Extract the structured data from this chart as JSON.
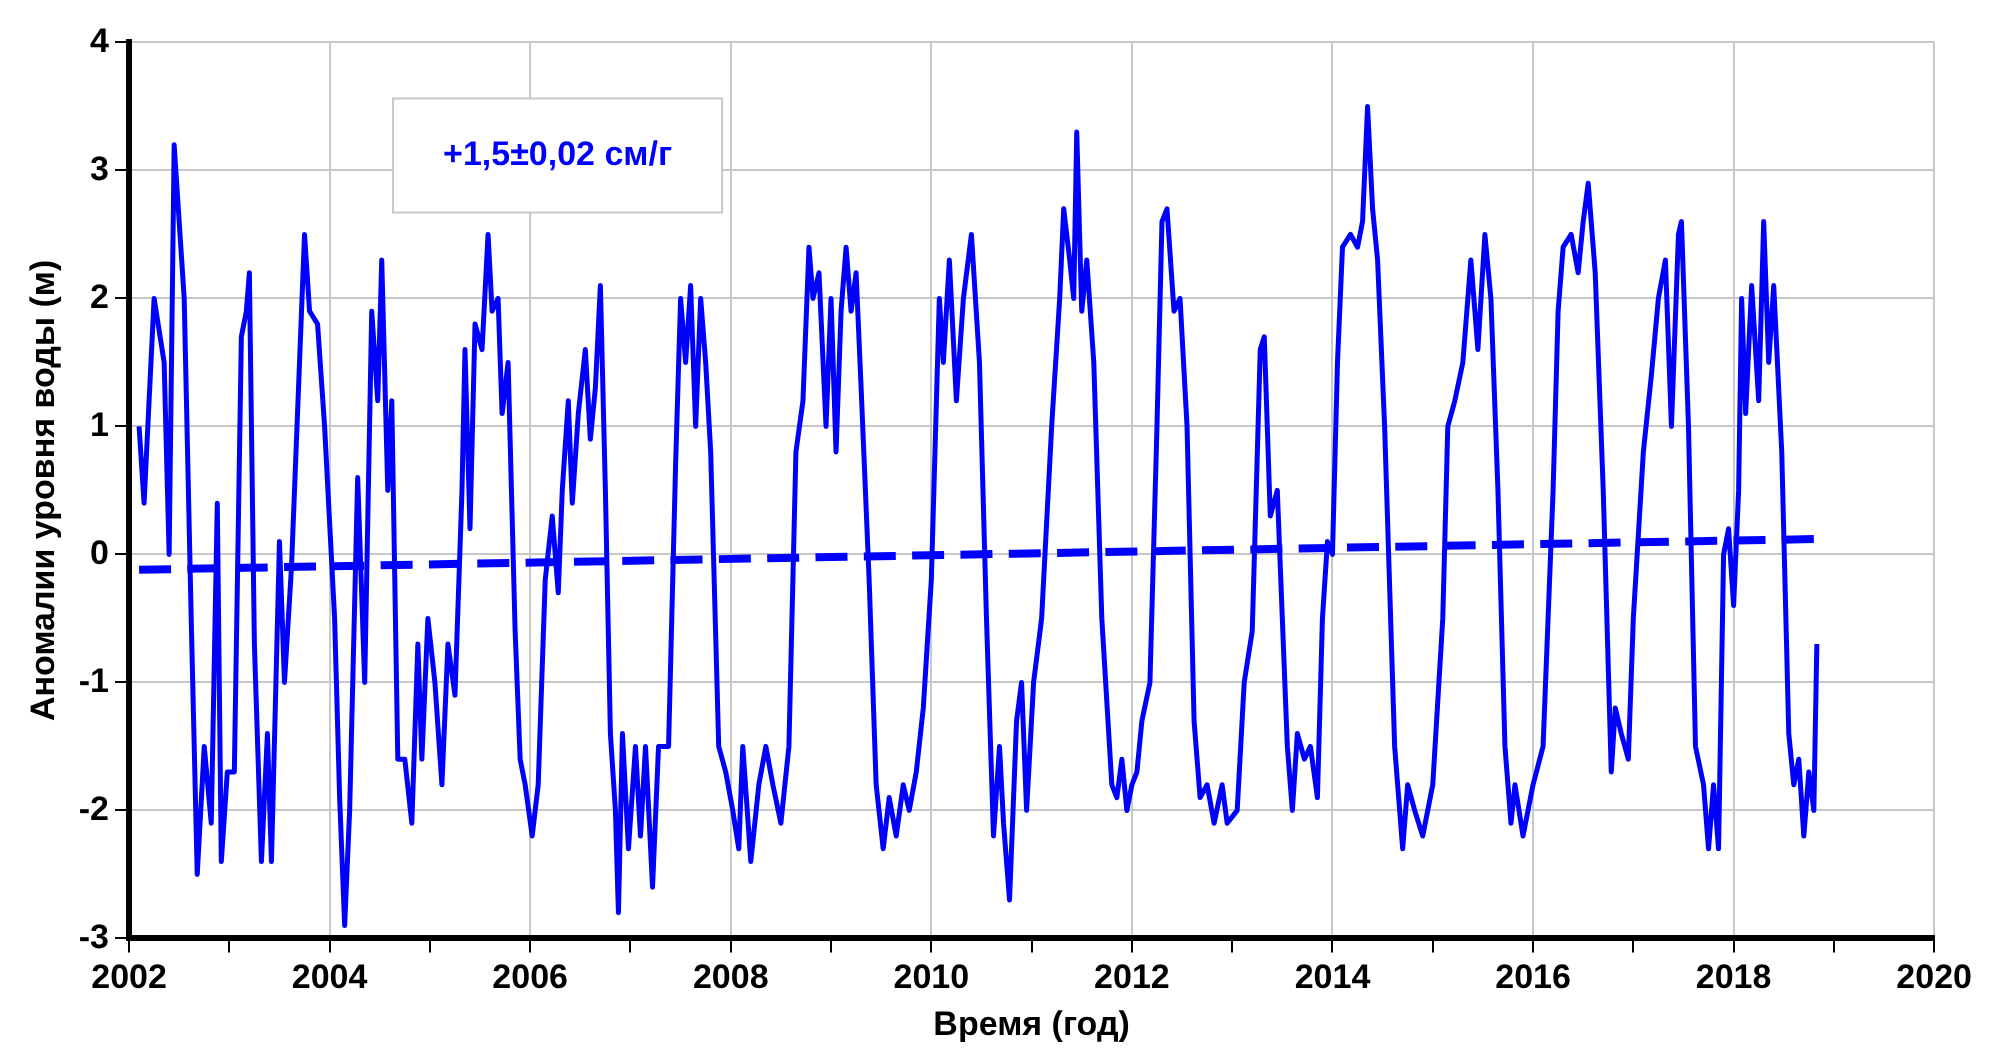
{
  "chart_data": {
    "type": "line",
    "xlabel": "Время (год)",
    "ylabel": "Аномалии уровня воды (м)",
    "annotations": [
      "+1,5±0,02 см/г"
    ],
    "xlim": [
      2002,
      2020
    ],
    "ylim": [
      -3,
      4
    ],
    "xticks": [
      2002,
      {
        "value": 2003,
        "label": null
      },
      2004,
      {
        "value": 2005,
        "label": null
      },
      2006,
      {
        "value": 2007,
        "label": null
      },
      2008,
      {
        "value": 2009,
        "label": null
      },
      2010,
      {
        "value": 2011,
        "label": null
      },
      2012,
      {
        "value": 2013,
        "label": null
      },
      2014,
      {
        "value": 2015,
        "label": null
      },
      2016,
      {
        "value": 2017,
        "label": null
      },
      2018,
      {
        "value": 2019,
        "label": null
      },
      2020
    ],
    "yticks": [
      -3,
      -2,
      -1,
      0,
      1,
      2,
      3,
      4
    ],
    "grid": true,
    "legend": false,
    "marker": "none",
    "series": [
      {
        "color": "#0000ff",
        "line_style": "solid",
        "x": [
          2002.1,
          2002.15,
          2002.25,
          2002.35,
          2002.4,
          2002.45,
          2002.55,
          2002.62,
          2002.68,
          2002.75,
          2002.82,
          2002.88,
          2002.92,
          2002.98,
          2003.05,
          2003.12,
          2003.17,
          2003.2,
          2003.25,
          2003.32,
          2003.38,
          2003.42,
          2003.5,
          2003.55,
          2003.62,
          2003.7,
          2003.75,
          2003.8,
          2003.88,
          2003.95,
          2004.05,
          2004.1,
          2004.15,
          2004.2,
          2004.28,
          2004.35,
          2004.42,
          2004.48,
          2004.52,
          2004.58,
          2004.62,
          2004.68,
          2004.75,
          2004.82,
          2004.88,
          2004.92,
          2004.98,
          2005.05,
          2005.12,
          2005.18,
          2005.25,
          2005.32,
          2005.35,
          2005.4,
          2005.45,
          2005.52,
          2005.58,
          2005.62,
          2005.68,
          2005.72,
          2005.78,
          2005.85,
          2005.9,
          2005.95,
          2006.02,
          2006.08,
          2006.15,
          2006.22,
          2006.28,
          2006.32,
          2006.38,
          2006.42,
          2006.48,
          2006.55,
          2006.6,
          2006.65,
          2006.7,
          2006.75,
          2006.8,
          2006.85,
          2006.88,
          2006.92,
          2006.98,
          2007.05,
          2007.1,
          2007.15,
          2007.22,
          2007.28,
          2007.32,
          2007.38,
          2007.45,
          2007.5,
          2007.55,
          2007.6,
          2007.65,
          2007.7,
          2007.75,
          2007.8,
          2007.88,
          2007.95,
          2008.02,
          2008.08,
          2008.12,
          2008.2,
          2008.28,
          2008.35,
          2008.42,
          2008.5,
          2008.58,
          2008.65,
          2008.72,
          2008.78,
          2008.82,
          2008.88,
          2008.95,
          2009.0,
          2009.05,
          2009.1,
          2009.15,
          2009.2,
          2009.25,
          2009.3,
          2009.38,
          2009.45,
          2009.52,
          2009.58,
          2009.65,
          2009.72,
          2009.78,
          2009.85,
          2009.92,
          2010.0,
          2010.08,
          2010.12,
          2010.18,
          2010.25,
          2010.32,
          2010.4,
          2010.48,
          2010.55,
          2010.62,
          2010.68,
          2010.72,
          2010.78,
          2010.85,
          2010.9,
          2010.95,
          2011.02,
          2011.1,
          2011.2,
          2011.28,
          2011.32,
          2011.38,
          2011.42,
          2011.45,
          2011.5,
          2011.55,
          2011.62,
          2011.7,
          2011.8,
          2011.85,
          2011.9,
          2011.95,
          2012.0,
          2012.05,
          2012.1,
          2012.18,
          2012.25,
          2012.3,
          2012.35,
          2012.42,
          2012.48,
          2012.55,
          2012.62,
          2012.68,
          2012.75,
          2012.82,
          2012.9,
          2012.95,
          2013.05,
          2013.12,
          2013.2,
          2013.28,
          2013.32,
          2013.38,
          2013.45,
          2013.5,
          2013.55,
          2013.6,
          2013.65,
          2013.72,
          2013.78,
          2013.85,
          2013.9,
          2013.95,
          2014.0,
          2014.05,
          2014.1,
          2014.18,
          2014.25,
          2014.3,
          2014.35,
          2014.4,
          2014.45,
          2014.52,
          2014.62,
          2014.7,
          2014.75,
          2014.82,
          2014.9,
          2015.0,
          2015.1,
          2015.15,
          2015.22,
          2015.3,
          2015.38,
          2015.45,
          2015.52,
          2015.58,
          2015.65,
          2015.72,
          2015.78,
          2015.82,
          2015.9,
          2016.0,
          2016.1,
          2016.2,
          2016.25,
          2016.3,
          2016.38,
          2016.45,
          2016.5,
          2016.55,
          2016.62,
          2016.7,
          2016.78,
          2016.82,
          2016.88,
          2016.95,
          2017.0,
          2017.1,
          2017.18,
          2017.25,
          2017.32,
          2017.38,
          2017.45,
          2017.48,
          2017.55,
          2017.62,
          2017.7,
          2017.75,
          2017.8,
          2017.85,
          2017.9,
          2017.95,
          2018.0,
          2018.05,
          2018.08,
          2018.12,
          2018.18,
          2018.25,
          2018.3,
          2018.35,
          2018.4,
          2018.48,
          2018.55,
          2018.6,
          2018.65,
          2018.7,
          2018.75,
          2018.8,
          2018.83
        ],
        "values": [
          1.0,
          0.4,
          2.0,
          1.5,
          0.0,
          3.2,
          2.0,
          -0.5,
          -2.5,
          -1.5,
          -2.1,
          0.4,
          -2.4,
          -1.7,
          -1.7,
          1.7,
          1.9,
          2.2,
          -0.7,
          -2.4,
          -1.4,
          -2.4,
          0.1,
          -1.0,
          -0.1,
          1.5,
          2.5,
          1.9,
          1.8,
          1.0,
          -0.5,
          -1.9,
          -2.9,
          -2.0,
          0.6,
          -1.0,
          1.9,
          1.2,
          2.3,
          0.5,
          1.2,
          -1.6,
          -1.6,
          -2.1,
          -0.7,
          -1.6,
          -0.5,
          -1.0,
          -1.8,
          -0.7,
          -1.1,
          0.5,
          1.6,
          0.2,
          1.8,
          1.6,
          2.5,
          1.9,
          2.0,
          1.1,
          1.5,
          -0.6,
          -1.6,
          -1.8,
          -2.2,
          -1.8,
          -0.2,
          0.3,
          -0.3,
          0.5,
          1.2,
          0.4,
          1.1,
          1.6,
          0.9,
          1.3,
          2.1,
          0.5,
          -1.4,
          -2.0,
          -2.8,
          -1.4,
          -2.3,
          -1.5,
          -2.2,
          -1.5,
          -2.6,
          -1.5,
          -1.5,
          -1.5,
          0.7,
          2.0,
          1.5,
          2.1,
          1.0,
          2.0,
          1.5,
          0.8,
          -1.5,
          -1.7,
          -2.0,
          -2.3,
          -1.5,
          -2.4,
          -1.8,
          -1.5,
          -1.8,
          -2.1,
          -1.5,
          0.8,
          1.2,
          2.4,
          2.0,
          2.2,
          1.0,
          2.0,
          0.8,
          1.9,
          2.4,
          1.9,
          2.2,
          1.3,
          -0.2,
          -1.8,
          -2.3,
          -1.9,
          -2.2,
          -1.8,
          -2.0,
          -1.7,
          -1.2,
          -0.2,
          2.0,
          1.5,
          2.3,
          1.2,
          2.0,
          2.5,
          1.5,
          -0.5,
          -2.2,
          -1.5,
          -2.1,
          -2.7,
          -1.3,
          -1.0,
          -2.0,
          -1.0,
          -0.5,
          1.0,
          2.0,
          2.7,
          2.3,
          2.0,
          3.3,
          1.9,
          2.3,
          1.5,
          -0.5,
          -1.8,
          -1.9,
          -1.6,
          -2.0,
          -1.8,
          -1.7,
          -1.3,
          -1.0,
          1.0,
          2.6,
          2.7,
          1.9,
          2.0,
          1.0,
          -1.3,
          -1.9,
          -1.8,
          -2.1,
          -1.8,
          -2.1,
          -2.0,
          -1.0,
          -0.6,
          1.6,
          1.7,
          0.3,
          0.5,
          -0.5,
          -1.5,
          -2.0,
          -1.4,
          -1.6,
          -1.5,
          -1.9,
          -0.5,
          0.1,
          0.0,
          1.5,
          2.4,
          2.5,
          2.4,
          2.6,
          3.5,
          2.7,
          2.3,
          1.0,
          -1.5,
          -2.3,
          -1.8,
          -2.0,
          -2.2,
          -1.8,
          -0.5,
          1.0,
          1.2,
          1.5,
          2.3,
          1.6,
          2.5,
          2.0,
          0.5,
          -1.5,
          -2.1,
          -1.8,
          -2.2,
          -1.8,
          -1.5,
          0.5,
          1.9,
          2.4,
          2.5,
          2.2,
          2.6,
          2.9,
          2.2,
          0.5,
          -1.7,
          -1.2,
          -1.4,
          -1.6,
          -0.5,
          0.8,
          1.4,
          2.0,
          2.3,
          1.0,
          2.5,
          2.6,
          1.0,
          -1.5,
          -1.8,
          -2.3,
          -1.8,
          -2.3,
          0.0,
          0.2,
          -0.4,
          0.5,
          2.0,
          1.1,
          2.1,
          1.2,
          2.6,
          1.5,
          2.1,
          0.8,
          -1.4,
          -1.8,
          -1.6,
          -2.2,
          -1.7,
          -2.0,
          -0.7
        ]
      },
      {
        "color": "#0000ff",
        "line_style": "dashed",
        "x": [
          2002.1,
          2018.8
        ],
        "values": [
          -0.12,
          0.12
        ]
      }
    ]
  }
}
